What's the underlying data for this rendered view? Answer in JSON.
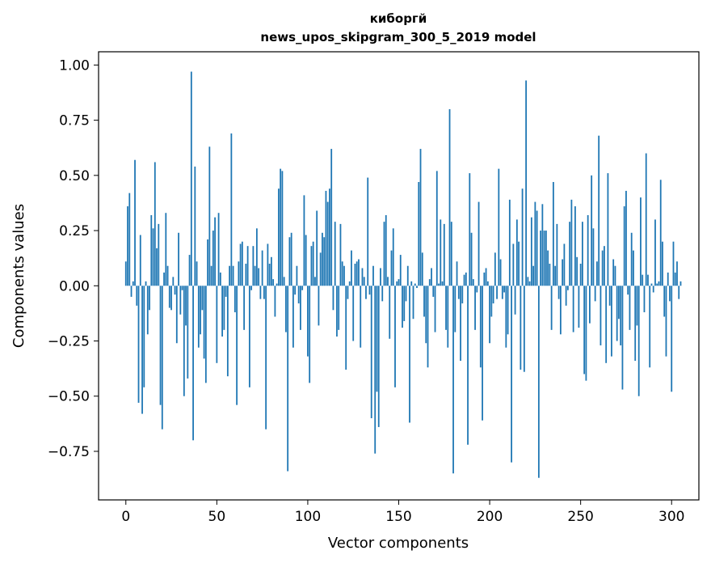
{
  "chart_data": {
    "type": "bar",
    "title_line1": "киборгй",
    "title_line2": "news_upos_skipgram_300_5_2019 model",
    "xlabel": "Vector components",
    "ylabel": "Components values",
    "xlim": [
      -15,
      315
    ],
    "ylim": [
      -0.97,
      1.06
    ],
    "xticks": [
      0,
      50,
      100,
      150,
      200,
      250,
      300
    ],
    "xtick_labels": [
      "0",
      "50",
      "100",
      "150",
      "200",
      "250",
      "300"
    ],
    "yticks": [
      -0.75,
      -0.5,
      -0.25,
      0.0,
      0.25,
      0.5,
      0.75,
      1.0
    ],
    "ytick_labels": [
      "−0.75",
      "−0.50",
      "−0.25",
      "0.00",
      "0.25",
      "0.50",
      "0.75",
      "1.00"
    ],
    "bar_color": "#1f77b4",
    "values": [
      0.11,
      0.36,
      0.42,
      -0.05,
      0.02,
      0.57,
      -0.09,
      -0.53,
      0.23,
      -0.58,
      -0.46,
      0.02,
      -0.22,
      -0.11,
      0.32,
      0.26,
      0.56,
      0.17,
      0.28,
      -0.54,
      -0.65,
      0.06,
      0.33,
      0.09,
      -0.1,
      -0.11,
      0.04,
      -0.04,
      -0.26,
      0.24,
      -0.13,
      -0.02,
      -0.5,
      -0.18,
      -0.42,
      0.14,
      0.97,
      -0.7,
      0.54,
      0.11,
      -0.28,
      -0.22,
      -0.11,
      -0.33,
      -0.44,
      0.21,
      0.63,
      0.09,
      0.25,
      0.31,
      -0.35,
      0.33,
      0.06,
      -0.23,
      -0.2,
      -0.05,
      -0.41,
      0.09,
      0.69,
      0.09,
      -0.12,
      -0.54,
      0.11,
      0.19,
      0.2,
      -0.2,
      0.1,
      0.18,
      -0.46,
      -0.02,
      0.18,
      0.09,
      0.26,
      0.08,
      -0.06,
      0.16,
      -0.06,
      -0.65,
      0.19,
      0.1,
      0.13,
      0.03,
      -0.14,
      0.01,
      0.44,
      0.53,
      0.52,
      0.04,
      -0.21,
      -0.84,
      0.22,
      0.24,
      -0.28,
      -0.04,
      0.09,
      -0.08,
      -0.2,
      -0.02,
      0.41,
      0.23,
      -0.32,
      -0.44,
      0.18,
      0.2,
      0.04,
      0.34,
      -0.18,
      0.15,
      0.24,
      0.22,
      0.43,
      0.38,
      0.44,
      0.62,
      -0.11,
      0.29,
      -0.23,
      -0.2,
      0.28,
      0.11,
      0.09,
      -0.38,
      -0.06,
      0.02,
      0.16,
      -0.25,
      0.1,
      0.11,
      0.12,
      -0.28,
      0.08,
      0.04,
      -0.06,
      0.49,
      -0.04,
      -0.6,
      0.09,
      -0.76,
      -0.48,
      -0.64,
      0.08,
      -0.07,
      0.29,
      0.32,
      0.04,
      -0.24,
      0.16,
      0.26,
      -0.46,
      0.02,
      0.03,
      0.14,
      -0.19,
      -0.16,
      -0.07,
      0.09,
      -0.62,
      0.02,
      -0.15,
      0.01,
      -0.01,
      0.47,
      0.62,
      0.15,
      -0.14,
      -0.26,
      -0.37,
      0.03,
      0.08,
      -0.05,
      -0.21,
      0.52,
      0.01,
      0.3,
      0.02,
      0.28,
      -0.2,
      -0.28,
      0.8,
      0.29,
      -0.85,
      -0.21,
      0.11,
      -0.06,
      -0.34,
      -0.08,
      0.05,
      0.06,
      -0.72,
      0.51,
      0.24,
      0.03,
      -0.2,
      -0.03,
      0.38,
      -0.37,
      -0.61,
      0.06,
      0.08,
      0.02,
      -0.26,
      -0.14,
      -0.08,
      0.15,
      -0.06,
      0.53,
      0.12,
      -0.06,
      -0.03,
      -0.28,
      -0.22,
      0.39,
      -0.8,
      0.19,
      -0.13,
      0.3,
      0.2,
      -0.38,
      0.44,
      -0.39,
      0.93,
      0.04,
      0.02,
      0.31,
      0.09,
      0.38,
      0.34,
      -0.87,
      0.25,
      0.37,
      0.25,
      0.25,
      0.16,
      0.1,
      -0.2,
      0.47,
      0.09,
      0.28,
      -0.06,
      -0.22,
      0.12,
      0.19,
      -0.09,
      -0.02,
      0.29,
      0.39,
      -0.21,
      0.36,
      0.13,
      -0.19,
      0.1,
      0.29,
      -0.4,
      -0.43,
      0.32,
      -0.17,
      0.5,
      0.26,
      -0.07,
      0.11,
      0.68,
      -0.27,
      0.16,
      0.18,
      -0.35,
      0.51,
      -0.09,
      -0.32,
      0.12,
      0.09,
      -0.25,
      -0.15,
      -0.27,
      -0.47,
      0.36,
      0.43,
      -0.04,
      -0.2,
      0.24,
      0.16,
      -0.34,
      -0.18,
      -0.5,
      0.4,
      0.05,
      -0.12,
      0.6,
      0.05,
      -0.37,
      0.01,
      -0.03,
      0.3,
      0.01,
      0.02,
      0.48,
      0.2,
      -0.14,
      -0.32,
      0.06,
      -0.07,
      -0.48,
      0.2,
      0.06,
      0.11,
      -0.06,
      0.02
    ]
  }
}
